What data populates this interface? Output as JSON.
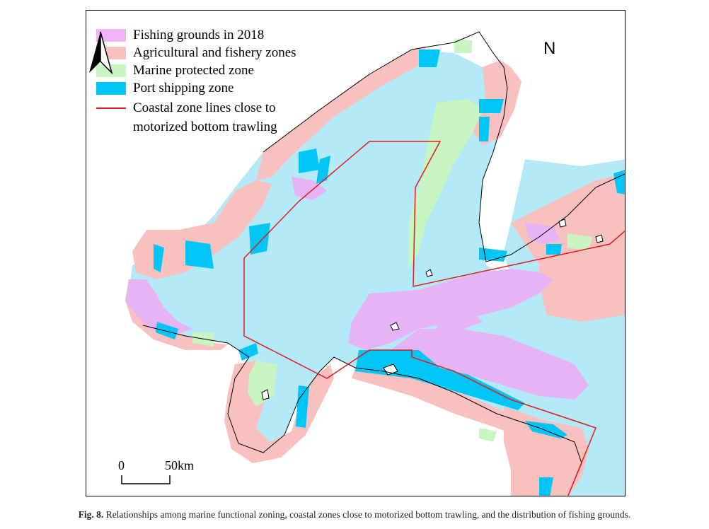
{
  "legend": {
    "items": [
      {
        "label": "Fishing grounds in 2018",
        "color": "#f0b4f7"
      },
      {
        "label": "Agricultural and fishery zones",
        "color": "#f9c0c0"
      },
      {
        "label": "Marine protected zone",
        "color": "#c9f5c2"
      },
      {
        "label": "Port shipping zone",
        "color": "#00c5f5"
      }
    ],
    "line_item": {
      "label_line1": "Coastal zone lines close to",
      "label_line2": "motorized bottom trawling",
      "color": "#e41a1c"
    }
  },
  "north_arrow": {
    "label": "N"
  },
  "scale_bar": {
    "start": "0",
    "end": "50km"
  },
  "colors": {
    "sea": "#b4eaf7",
    "land": "#ffffff",
    "fishing": "#e6b3f5",
    "agri": "#f9c0c0",
    "protected": "#c9f5c2",
    "port": "#00c5f5",
    "trawl_line": "#e41a1c"
  },
  "caption": {
    "label": "Fig. 8.",
    "text": "Relationships among marine functional zoning, coastal zones close to motorized bottom trawling, and the distribution of fishing grounds."
  }
}
